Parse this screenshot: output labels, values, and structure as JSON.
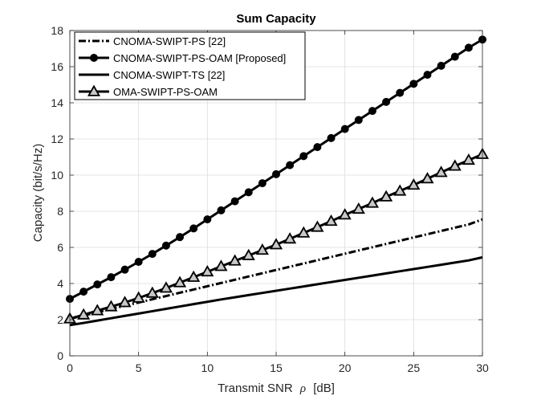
{
  "chart_data": {
    "type": "line",
    "title": "Sum Capacity",
    "xlabel_prefix": "Transmit SNR",
    "xlabel_symbol": "ρ",
    "xlabel_suffix": "[dB]",
    "ylabel": "Capacity (bit/s/Hz)",
    "xlim": [
      0,
      30
    ],
    "ylim": [
      0,
      18
    ],
    "xticks": [
      0,
      5,
      10,
      15,
      20,
      25,
      30
    ],
    "yticks": [
      0,
      2,
      4,
      6,
      8,
      10,
      12,
      14,
      16,
      18
    ],
    "grid": true,
    "legend_position": "top-left",
    "x": [
      0,
      1,
      2,
      3,
      4,
      5,
      6,
      7,
      8,
      9,
      10,
      11,
      12,
      13,
      14,
      15,
      16,
      17,
      18,
      19,
      20,
      21,
      22,
      23,
      24,
      25,
      26,
      27,
      28,
      29,
      30
    ],
    "series": [
      {
        "name": "CNOMA-SWIPT-PS [22]",
        "style": "dashdot",
        "marker": "none",
        "color": "#000000",
        "values": [
          2.05,
          2.23,
          2.41,
          2.59,
          2.77,
          2.95,
          3.13,
          3.31,
          3.49,
          3.67,
          3.85,
          4.03,
          4.21,
          4.39,
          4.57,
          4.75,
          4.93,
          5.11,
          5.29,
          5.47,
          5.65,
          5.83,
          6.01,
          6.19,
          6.37,
          6.55,
          6.73,
          6.91,
          7.09,
          7.27,
          7.55
        ]
      },
      {
        "name": "CNOMA-SWIPT-PS-OAM [Proposed]",
        "style": "solid",
        "marker": "circle",
        "color": "#000000",
        "values": [
          3.15,
          3.55,
          3.95,
          4.35,
          4.77,
          5.2,
          5.64,
          6.1,
          6.57,
          7.05,
          7.55,
          8.05,
          8.55,
          9.05,
          9.55,
          10.05,
          10.55,
          11.05,
          11.55,
          12.05,
          12.55,
          13.05,
          13.55,
          14.05,
          14.55,
          15.05,
          15.55,
          16.05,
          16.55,
          17.05,
          17.5
        ]
      },
      {
        "name": "CNOMA-SWIPT-TS [22]",
        "style": "solid",
        "marker": "none",
        "color": "#000000",
        "values": [
          1.7,
          1.82,
          1.95,
          2.08,
          2.21,
          2.34,
          2.47,
          2.6,
          2.73,
          2.86,
          2.99,
          3.12,
          3.24,
          3.36,
          3.48,
          3.6,
          3.72,
          3.84,
          3.96,
          4.08,
          4.2,
          4.32,
          4.44,
          4.56,
          4.68,
          4.8,
          4.92,
          5.04,
          5.16,
          5.28,
          5.45
        ]
      },
      {
        "name": "OMA-SWIPT-PS-OAM",
        "style": "solid",
        "marker": "triangle",
        "color": "#000000",
        "values": [
          2.05,
          2.27,
          2.5,
          2.72,
          2.95,
          3.2,
          3.47,
          3.75,
          4.05,
          4.35,
          4.65,
          4.95,
          5.25,
          5.55,
          5.85,
          6.15,
          6.47,
          6.8,
          7.12,
          7.45,
          7.8,
          8.12,
          8.45,
          8.8,
          9.12,
          9.45,
          9.8,
          10.15,
          10.5,
          10.83,
          11.15
        ]
      }
    ]
  }
}
